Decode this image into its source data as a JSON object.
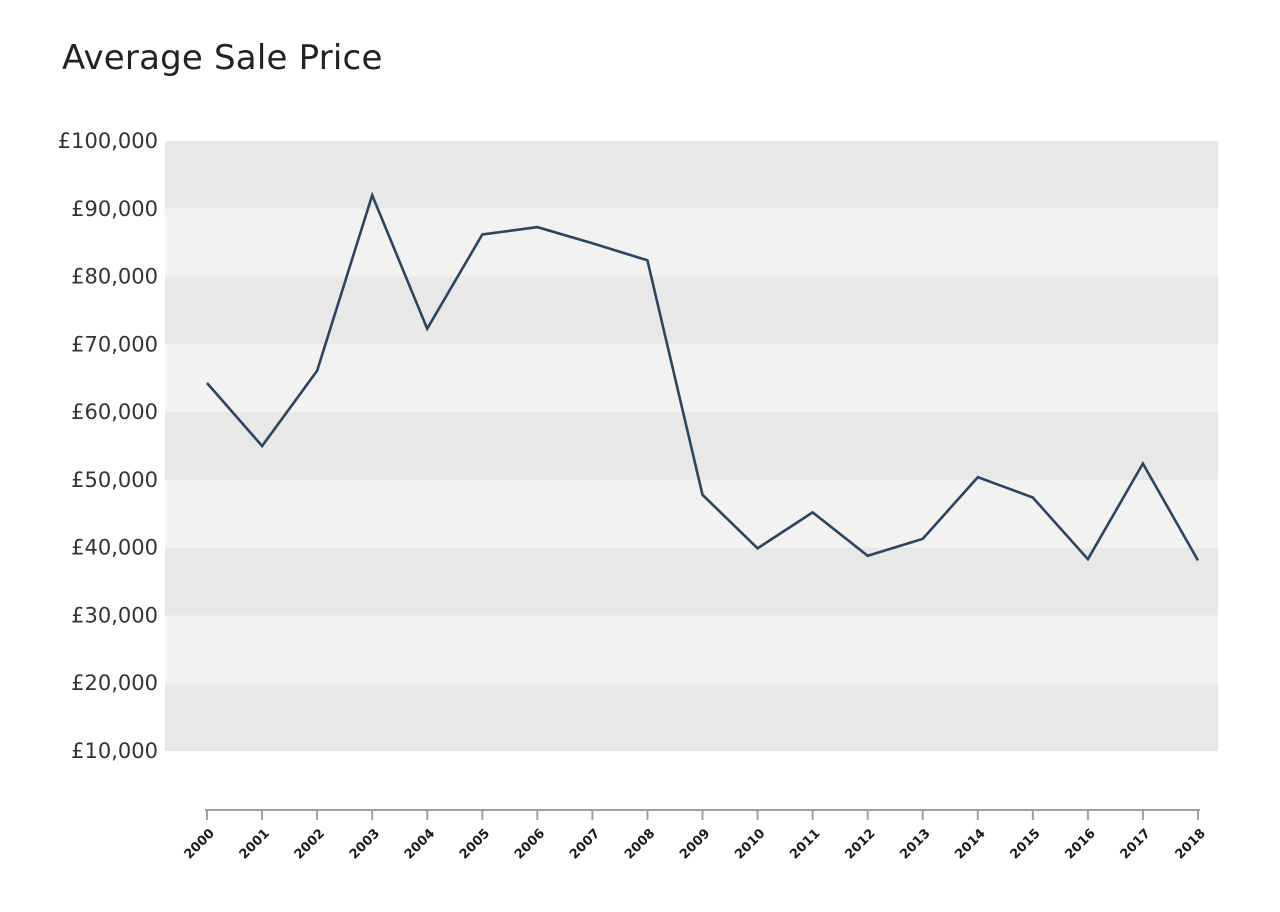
{
  "chart_data": {
    "type": "line",
    "title": "Average Sale Price",
    "xlabel": "",
    "ylabel": "",
    "x": [
      "2000",
      "2001",
      "2002",
      "2003",
      "2004",
      "2005",
      "2006",
      "2007",
      "2008",
      "2009",
      "2010",
      "2011",
      "2012",
      "2013",
      "2014",
      "2015",
      "2016",
      "2017",
      "2018"
    ],
    "series": [
      {
        "values": [
          64300,
          55000,
          66100,
          92000,
          72300,
          86200,
          87300,
          84900,
          82400,
          47800,
          39900,
          45200,
          38800,
          41300,
          50400,
          47400,
          38300,
          52400,
          38100
        ]
      }
    ],
    "ylim": [
      10000,
      100000
    ],
    "y_ticks": [
      "£100,000",
      "£90,000",
      "£80,000",
      "£70,000",
      "£60,000",
      "£50,000",
      "£40,000",
      "£30,000",
      "£20,000",
      "£10,000"
    ],
    "y_tick_values": [
      100000,
      90000,
      80000,
      70000,
      60000,
      50000,
      40000,
      30000,
      20000,
      10000
    ],
    "grid": "alternating horizontal bands",
    "legend": "none",
    "colors": {
      "line": "#2b4560",
      "band_dark": "#e8e8e8",
      "band_light": "#f2f2f2",
      "axis": "#a0a0a0"
    }
  }
}
